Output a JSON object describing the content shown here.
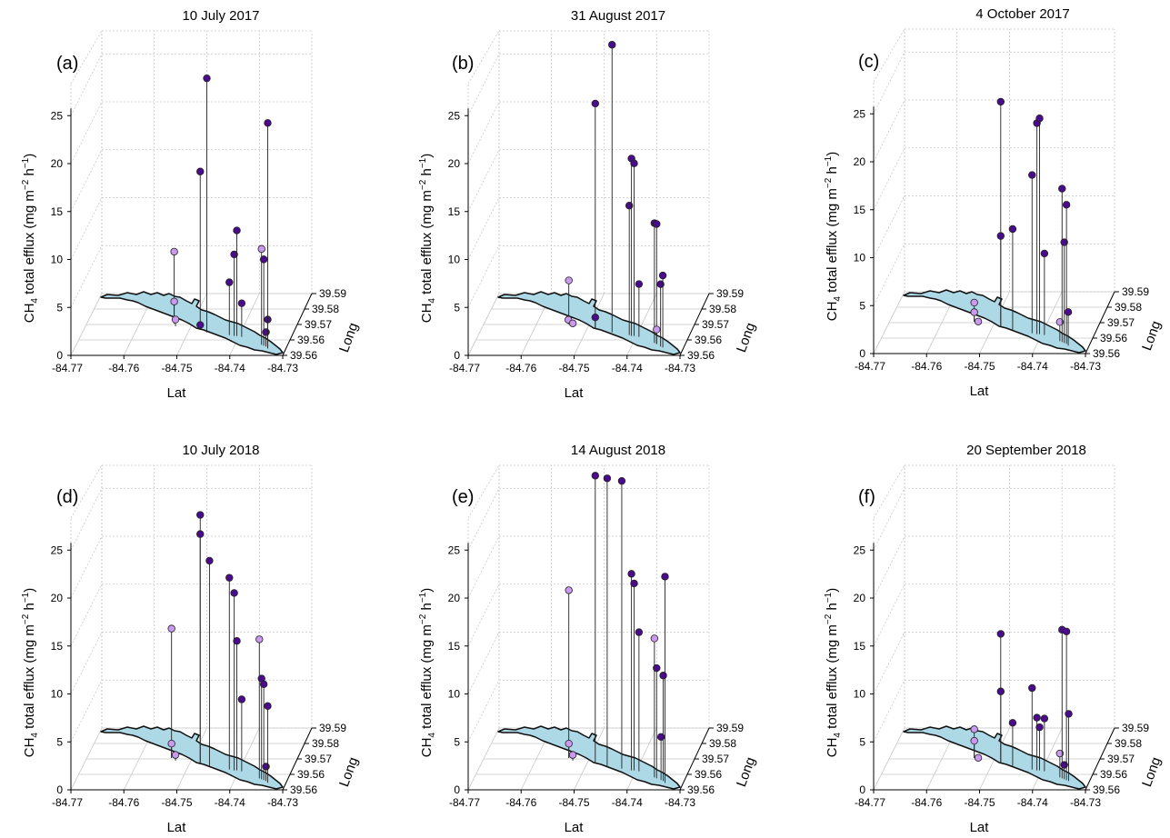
{
  "figure": {
    "xlabel": "Lat",
    "ylabel": "Long",
    "zlabel_prefix": "CH",
    "zlabel_sub": "4",
    "zlabel_mid": " total efflux (mg m",
    "zlabel_sup1": "−2",
    "zlabel_h": " h",
    "zlabel_sup2": "−1",
    "zlabel_end": ")",
    "x_ticks": [
      "-84.77",
      "-84.76",
      "-84.75",
      "-84.74",
      "-84.73"
    ],
    "y_ticks": [
      "39.56",
      "39.56",
      "39.57",
      "39.58",
      "39.59"
    ],
    "z_ticks": [
      "0",
      "5",
      "10",
      "15",
      "20",
      "25"
    ],
    "colors": {
      "low": "#cc99f0",
      "high": "#4b0c8c",
      "lake": "#add8e6",
      "outline": "#111111"
    }
  },
  "chart_data": [
    {
      "type": "scatter",
      "panel": "(a)",
      "title": "10 July 2017",
      "xlabel": "Lat",
      "ylabel": "Long",
      "zlabel": "CH4 total efflux (mg m-2 h-1)",
      "xlim": [
        -84.77,
        -84.73
      ],
      "ylim": [
        39.555,
        39.59
      ],
      "zlim": [
        0,
        25
      ],
      "grid": true,
      "points": [
        {
          "lat": -84.7535,
          "long": 39.573,
          "z": 7.5,
          "group": "low"
        },
        {
          "lat": -84.7535,
          "long": 39.573,
          "z": 2.3,
          "group": "low"
        },
        {
          "lat": -84.753,
          "long": 39.5715,
          "z": 0.7,
          "group": "low"
        },
        {
          "lat": -84.748,
          "long": 39.5695,
          "z": 16.5,
          "group": "high"
        },
        {
          "lat": -84.748,
          "long": 39.5695,
          "z": 0.5,
          "group": "high"
        },
        {
          "lat": -84.7465,
          "long": 39.568,
          "z": 26.5,
          "group": "high"
        },
        {
          "lat": -84.742,
          "long": 39.5665,
          "z": 5.5,
          "group": "high"
        },
        {
          "lat": -84.741,
          "long": 39.566,
          "z": 8.5,
          "group": "high"
        },
        {
          "lat": -84.7405,
          "long": 39.566,
          "z": 11.0,
          "group": "high"
        },
        {
          "lat": -84.7395,
          "long": 39.5655,
          "z": 3.5,
          "group": "high"
        },
        {
          "lat": -84.735,
          "long": 39.561,
          "z": 10.0,
          "group": "low"
        },
        {
          "lat": -84.7345,
          "long": 39.5605,
          "z": 9.0,
          "group": "high"
        },
        {
          "lat": -84.734,
          "long": 39.56,
          "z": 1.5,
          "group": "high"
        },
        {
          "lat": -84.7335,
          "long": 39.559,
          "z": 3.0,
          "group": "high"
        },
        {
          "lat": -84.7335,
          "long": 39.559,
          "z": 23.5,
          "group": "high"
        }
      ]
    },
    {
      "type": "scatter",
      "panel": "(b)",
      "title": "31 August 2017",
      "xlabel": "Lat",
      "ylabel": "Long",
      "zlabel": "CH4 total efflux (mg m-2 h-1)",
      "xlim": [
        -84.77,
        -84.73
      ],
      "ylim": [
        39.555,
        39.59
      ],
      "zlim": [
        0,
        25
      ],
      "grid": true,
      "points": [
        {
          "lat": -84.754,
          "long": 39.573,
          "z": 4.5,
          "group": "low"
        },
        {
          "lat": -84.754,
          "long": 39.5725,
          "z": 0.5,
          "group": "low"
        },
        {
          "lat": -84.753,
          "long": 39.5715,
          "z": 0.3,
          "group": "low"
        },
        {
          "lat": -84.7485,
          "long": 39.57,
          "z": 23.5,
          "group": "high"
        },
        {
          "lat": -84.7485,
          "long": 39.57,
          "z": 1.2,
          "group": "high"
        },
        {
          "lat": -84.745,
          "long": 39.568,
          "z": 30.0,
          "group": "high"
        },
        {
          "lat": -84.7415,
          "long": 39.5665,
          "z": 13.5,
          "group": "high"
        },
        {
          "lat": -84.741,
          "long": 39.566,
          "z": 18.5,
          "group": "high"
        },
        {
          "lat": -84.7405,
          "long": 39.566,
          "z": 18.0,
          "group": "high"
        },
        {
          "lat": -84.7395,
          "long": 39.5655,
          "z": 5.5,
          "group": "high"
        },
        {
          "lat": -84.736,
          "long": 39.562,
          "z": 12.5,
          "group": "high"
        },
        {
          "lat": -84.7355,
          "long": 39.5615,
          "z": 12.5,
          "group": "high"
        },
        {
          "lat": -84.7355,
          "long": 39.5615,
          "z": 1.5,
          "group": "low"
        },
        {
          "lat": -84.7345,
          "long": 39.56,
          "z": 6.5,
          "group": "high"
        },
        {
          "lat": -84.734,
          "long": 39.5595,
          "z": 7.5,
          "group": "high"
        }
      ]
    },
    {
      "type": "scatter",
      "panel": "(c)",
      "title": "4 October 2017",
      "xlabel": "Lat",
      "ylabel": "Long",
      "zlabel": "CH4 total efflux (mg m-2 h-1)",
      "xlim": [
        -84.77,
        -84.73
      ],
      "ylim": [
        39.555,
        39.59
      ],
      "zlim": [
        0,
        25
      ],
      "grid": true,
      "points": [
        {
          "lat": -84.754,
          "long": 39.573,
          "z": 2.0,
          "group": "low"
        },
        {
          "lat": -84.754,
          "long": 39.573,
          "z": 1.0,
          "group": "low"
        },
        {
          "lat": -84.753,
          "long": 39.5715,
          "z": 0.3,
          "group": "low"
        },
        {
          "lat": -84.7485,
          "long": 39.57,
          "z": 23.5,
          "group": "high"
        },
        {
          "lat": -84.7485,
          "long": 39.57,
          "z": 9.5,
          "group": "high"
        },
        {
          "lat": -84.746,
          "long": 39.5685,
          "z": 10.5,
          "group": "high"
        },
        {
          "lat": -84.742,
          "long": 39.5665,
          "z": 16.5,
          "group": "high"
        },
        {
          "lat": -84.741,
          "long": 39.566,
          "z": 22.0,
          "group": "high"
        },
        {
          "lat": -84.7405,
          "long": 39.566,
          "z": 22.5,
          "group": "high"
        },
        {
          "lat": -84.7395,
          "long": 39.5655,
          "z": 8.5,
          "group": "high"
        },
        {
          "lat": -84.736,
          "long": 39.562,
          "z": 2.0,
          "group": "low"
        },
        {
          "lat": -84.7355,
          "long": 39.5615,
          "z": 16.0,
          "group": "high"
        },
        {
          "lat": -84.735,
          "long": 39.561,
          "z": 10.5,
          "group": "high"
        },
        {
          "lat": -84.7345,
          "long": 39.5605,
          "z": 14.5,
          "group": "high"
        },
        {
          "lat": -84.734,
          "long": 39.5595,
          "z": 3.5,
          "group": "high"
        }
      ]
    },
    {
      "type": "scatter",
      "panel": "(d)",
      "title": "10 July 2018",
      "xlabel": "Lat",
      "ylabel": "Long",
      "zlabel": "CH4 total efflux (mg m-2 h-1)",
      "xlim": [
        -84.77,
        -84.73
      ],
      "ylim": [
        39.555,
        39.59
      ],
      "zlim": [
        0,
        25
      ],
      "grid": true,
      "points": [
        {
          "lat": -84.754,
          "long": 39.573,
          "z": 13.5,
          "group": "low"
        },
        {
          "lat": -84.754,
          "long": 39.573,
          "z": 1.5,
          "group": "low"
        },
        {
          "lat": -84.753,
          "long": 39.5715,
          "z": 0.6,
          "group": "low"
        },
        {
          "lat": -84.748,
          "long": 39.5695,
          "z": 26.0,
          "group": "high"
        },
        {
          "lat": -84.748,
          "long": 39.5695,
          "z": 24.0,
          "group": "high"
        },
        {
          "lat": -84.746,
          "long": 39.568,
          "z": 21.5,
          "group": "high"
        },
        {
          "lat": -84.742,
          "long": 39.5665,
          "z": 20.0,
          "group": "high"
        },
        {
          "lat": -84.741,
          "long": 39.566,
          "z": 18.5,
          "group": "high"
        },
        {
          "lat": -84.7405,
          "long": 39.566,
          "z": 13.5,
          "group": "high"
        },
        {
          "lat": -84.7395,
          "long": 39.5655,
          "z": 7.5,
          "group": "high"
        },
        {
          "lat": -84.7355,
          "long": 39.5615,
          "z": 14.5,
          "group": "low"
        },
        {
          "lat": -84.735,
          "long": 39.561,
          "z": 10.5,
          "group": "high"
        },
        {
          "lat": -84.7345,
          "long": 39.5605,
          "z": 10.0,
          "group": "high"
        },
        {
          "lat": -84.734,
          "long": 39.56,
          "z": 1.5,
          "group": "high"
        },
        {
          "lat": -84.7335,
          "long": 39.559,
          "z": 8.0,
          "group": "high"
        }
      ]
    },
    {
      "type": "scatter",
      "panel": "(e)",
      "title": "14 August 2018",
      "xlabel": "Lat",
      "ylabel": "Long",
      "zlabel": "CH4 total efflux (mg m-2 h-1)",
      "xlim": [
        -84.77,
        -84.73
      ],
      "ylim": [
        39.555,
        39.59
      ],
      "zlim": [
        0,
        25
      ],
      "grid": true,
      "points": [
        {
          "lat": -84.754,
          "long": 39.573,
          "z": 17.5,
          "group": "low"
        },
        {
          "lat": -84.754,
          "long": 39.573,
          "z": 1.5,
          "group": "low"
        },
        {
          "lat": -84.753,
          "long": 39.5715,
          "z": 0.6,
          "group": "low"
        },
        {
          "lat": -84.7485,
          "long": 39.57,
          "z": 30.0,
          "group": "high"
        },
        {
          "lat": -84.746,
          "long": 39.5685,
          "z": 30.0,
          "group": "high"
        },
        {
          "lat": -84.743,
          "long": 39.567,
          "z": 30.0,
          "group": "high"
        },
        {
          "lat": -84.741,
          "long": 39.566,
          "z": 20.5,
          "group": "high"
        },
        {
          "lat": -84.7405,
          "long": 39.566,
          "z": 19.5,
          "group": "high"
        },
        {
          "lat": -84.7395,
          "long": 39.5655,
          "z": 14.5,
          "group": "high"
        },
        {
          "lat": -84.736,
          "long": 39.562,
          "z": 14.5,
          "group": "low"
        },
        {
          "lat": -84.7355,
          "long": 39.5615,
          "z": 11.5,
          "group": "high"
        },
        {
          "lat": -84.7345,
          "long": 39.5605,
          "z": 4.5,
          "group": "high"
        },
        {
          "lat": -84.734,
          "long": 39.56,
          "z": 11.0,
          "group": "high"
        },
        {
          "lat": -84.7335,
          "long": 39.559,
          "z": 21.5,
          "group": "high"
        }
      ]
    },
    {
      "type": "scatter",
      "panel": "(f)",
      "title": "20 September 2018",
      "xlabel": "Lat",
      "ylabel": "Long",
      "zlabel": "CH4 total efflux (mg m-2 h-1)",
      "xlim": [
        -84.77,
        -84.73
      ],
      "ylim": [
        39.555,
        39.59
      ],
      "zlim": [
        0,
        25
      ],
      "grid": true,
      "points": [
        {
          "lat": -84.754,
          "long": 39.573,
          "z": 3.0,
          "group": "low"
        },
        {
          "lat": -84.754,
          "long": 39.573,
          "z": 1.8,
          "group": "low"
        },
        {
          "lat": -84.753,
          "long": 39.5715,
          "z": 0.3,
          "group": "low"
        },
        {
          "lat": -84.7485,
          "long": 39.57,
          "z": 13.5,
          "group": "high"
        },
        {
          "lat": -84.7485,
          "long": 39.57,
          "z": 7.5,
          "group": "high"
        },
        {
          "lat": -84.746,
          "long": 39.5685,
          "z": 4.5,
          "group": "high"
        },
        {
          "lat": -84.742,
          "long": 39.5665,
          "z": 8.5,
          "group": "high"
        },
        {
          "lat": -84.741,
          "long": 39.566,
          "z": 5.5,
          "group": "high"
        },
        {
          "lat": -84.7405,
          "long": 39.566,
          "z": 4.5,
          "group": "high"
        },
        {
          "lat": -84.7395,
          "long": 39.5655,
          "z": 5.5,
          "group": "high"
        },
        {
          "lat": -84.736,
          "long": 39.562,
          "z": 2.5,
          "group": "low"
        },
        {
          "lat": -84.7355,
          "long": 39.5615,
          "z": 15.5,
          "group": "high"
        },
        {
          "lat": -84.735,
          "long": 39.561,
          "z": 1.5,
          "group": "high"
        },
        {
          "lat": -84.7345,
          "long": 39.5605,
          "z": 15.5,
          "group": "high"
        },
        {
          "lat": -84.734,
          "long": 39.56,
          "z": 7.0,
          "group": "high"
        }
      ]
    }
  ]
}
